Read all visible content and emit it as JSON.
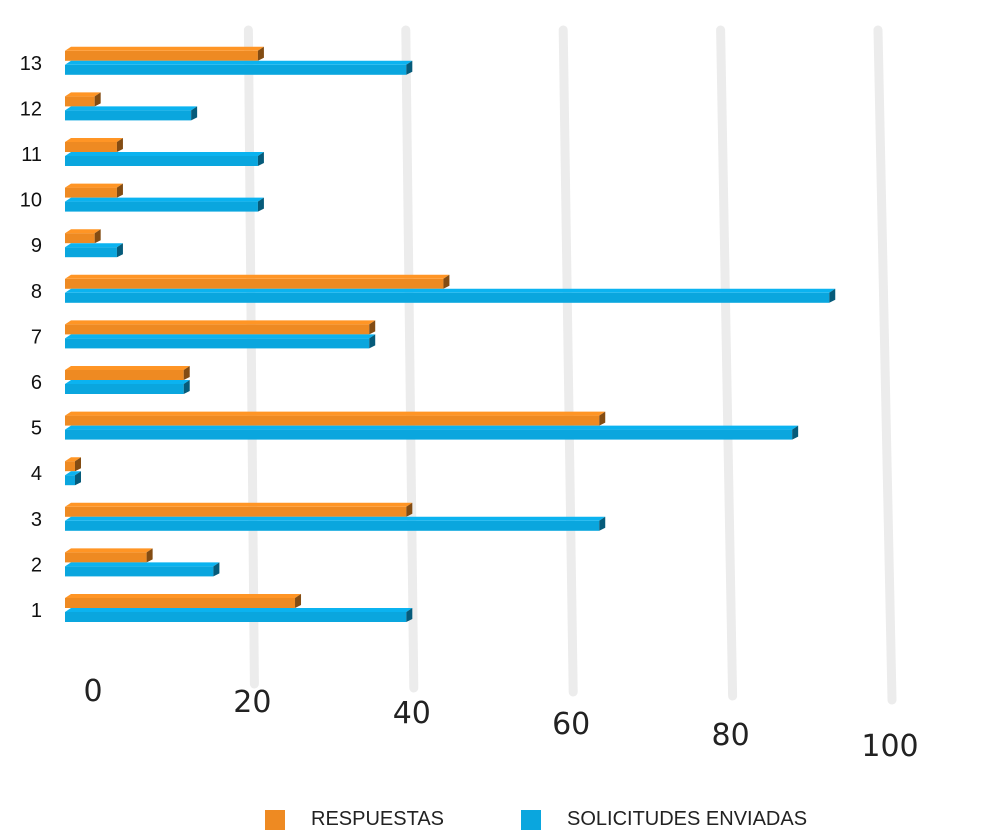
{
  "chart_data": {
    "type": "bar",
    "orientation": "horizontal",
    "categories": [
      "1",
      "2",
      "3",
      "4",
      "5",
      "6",
      "7",
      "8",
      "9",
      "10",
      "11",
      "12",
      "13"
    ],
    "series": [
      {
        "name": "RESPUESTAS",
        "color": "#EE8A22",
        "values": [
          31,
          11,
          46,
          0,
          72,
          16,
          41,
          51,
          4,
          7,
          7,
          4,
          26
        ]
      },
      {
        "name": "SOLICITUDES ENVIADAS",
        "color": "#0AA6DE",
        "values": [
          46,
          20,
          72,
          0,
          98,
          16,
          41,
          103,
          7,
          26,
          26,
          17,
          46
        ]
      }
    ],
    "xticks": [
      "0",
      "20",
      "40",
      "60",
      "80",
      "100",
      "120"
    ],
    "xlim": [
      0,
      120
    ],
    "grid": true,
    "legend": "bottom"
  }
}
